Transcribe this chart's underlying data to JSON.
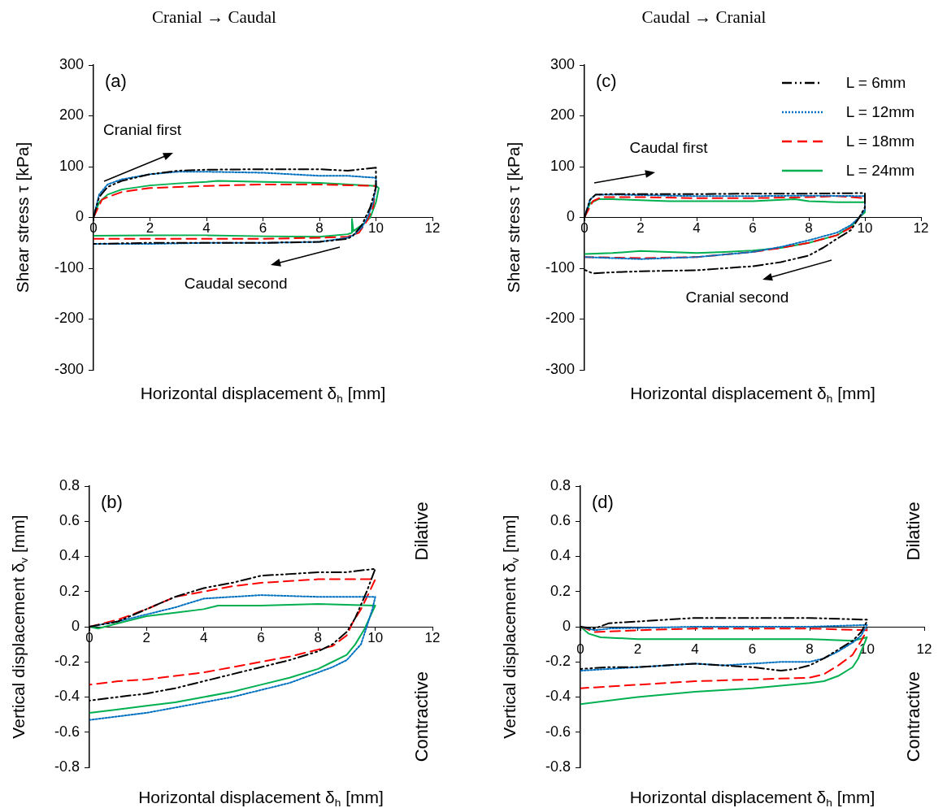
{
  "chart_data": [
    {
      "type": "line",
      "title": "Cranial → Caudal",
      "xlabel": "Horizontal displacement δ$_{h}$ [mm]",
      "ylabel": "Shear stress τ [kPa]",
      "xlim": [
        0,
        12
      ],
      "xticks": [
        0,
        2,
        4,
        6,
        8,
        10,
        12
      ],
      "ylim": [
        -300,
        300
      ],
      "yticks": [
        -300,
        -200,
        -100,
        0,
        100,
        200,
        300
      ],
      "grid": false,
      "legend": false,
      "annotations": [
        "(a)",
        "Cranial first",
        "Caudal second"
      ],
      "series": [
        {
          "color": "#000000",
          "line_style": "dashdot",
          "x": [
            0,
            0.2,
            0.5,
            1,
            2,
            3,
            4,
            6,
            8,
            9,
            10,
            10,
            9.8,
            9.5,
            9.2,
            9,
            8,
            6,
            4,
            2,
            0
          ],
          "values": [
            0,
            40,
            60,
            72,
            85,
            92,
            94,
            95,
            95,
            92,
            98,
            60,
            20,
            -15,
            -35,
            -42,
            -48,
            -50,
            -50,
            -50,
            -52
          ]
        },
        {
          "color": "#0070c0",
          "line_style": "dotted",
          "x": [
            0,
            0.2,
            0.5,
            1,
            2,
            3,
            4,
            6,
            8,
            9,
            10,
            10,
            9.9,
            9.7,
            9.5,
            9.2,
            9,
            8,
            6,
            4,
            2,
            0
          ],
          "values": [
            0,
            45,
            65,
            75,
            85,
            90,
            90,
            88,
            82,
            82,
            78,
            60,
            30,
            0,
            -20,
            -35,
            -40,
            -48,
            -50,
            -50,
            -52,
            -52
          ]
        },
        {
          "color": "#ff0000",
          "line_style": "dashed",
          "x": [
            0,
            0.3,
            0.5,
            1,
            2,
            3,
            4,
            6,
            8,
            10,
            9.9,
            9.7,
            9.4,
            9,
            8,
            6,
            4,
            2,
            0
          ],
          "values": [
            0,
            35,
            40,
            50,
            58,
            60,
            62,
            65,
            65,
            62,
            20,
            -5,
            -30,
            -38,
            -40,
            -42,
            -42,
            -42,
            -42
          ]
        },
        {
          "color": "#00b050",
          "line_style": "solid",
          "x": [
            0,
            0.2,
            0.5,
            1,
            2,
            3,
            4,
            4.4,
            6,
            8,
            10,
            10.1,
            10,
            9.8,
            9.5,
            9.2,
            9.15,
            9.15,
            9,
            8,
            6,
            4,
            2,
            0
          ],
          "values": [
            0,
            30,
            45,
            55,
            63,
            67,
            70,
            72,
            70,
            68,
            62,
            58,
            30,
            0,
            -15,
            -27,
            -3,
            -30,
            -33,
            -38,
            -37,
            -35,
            -35,
            -36
          ]
        }
      ]
    },
    {
      "type": "line",
      "title": "Caudal → Cranial",
      "xlabel": "Horizontal displacement δ$_{h}$ [mm]",
      "ylabel": "Shear stress τ [kPa]",
      "xlim": [
        0,
        12
      ],
      "xticks": [
        0,
        2,
        4,
        6,
        8,
        10,
        12
      ],
      "ylim": [
        -300,
        300
      ],
      "yticks": [
        -300,
        -200,
        -100,
        0,
        100,
        200,
        300
      ],
      "grid": false,
      "legend": "top right",
      "annotations": [
        "(c)",
        "Caudal first",
        "Cranial second"
      ],
      "series": [
        {
          "name": "L = 6mm",
          "color": "#000000",
          "line_style": "dashdot",
          "x": [
            0,
            0.2,
            0.4,
            1,
            4,
            6,
            8,
            10,
            10,
            9.8,
            9.5,
            9,
            8.5,
            8,
            7,
            6,
            5,
            4,
            3,
            2,
            1,
            0.3,
            0
          ],
          "values": [
            0,
            35,
            45,
            46,
            46,
            47,
            47,
            48,
            20,
            0,
            -25,
            -42,
            -60,
            -75,
            -88,
            -96,
            -100,
            -104,
            -105,
            -106,
            -108,
            -110,
            -103
          ]
        },
        {
          "name": "L = 12mm",
          "color": "#0070c0",
          "line_style": "dotted",
          "x": [
            0,
            0.2,
            0.4,
            1,
            4,
            6,
            8,
            10,
            10,
            9.8,
            9.5,
            9,
            8,
            7,
            6,
            4,
            2,
            1,
            0
          ],
          "values": [
            0,
            35,
            45,
            45,
            42,
            42,
            43,
            42,
            15,
            0,
            -15,
            -30,
            -45,
            -58,
            -68,
            -78,
            -82,
            -80,
            -78
          ]
        },
        {
          "name": "L = 18mm",
          "color": "#ff0000",
          "line_style": "dashed",
          "x": [
            0,
            0.3,
            0.6,
            2,
            4,
            6,
            8,
            9,
            10,
            10,
            9.8,
            9.5,
            9,
            8,
            7,
            6,
            4,
            2,
            0
          ],
          "values": [
            0,
            32,
            40,
            40,
            38,
            38,
            40,
            42,
            38,
            15,
            0,
            -20,
            -35,
            -50,
            -60,
            -68,
            -78,
            -80,
            -78
          ]
        },
        {
          "name": "L = 24mm",
          "color": "#00b050",
          "line_style": "solid",
          "x": [
            0,
            0.2,
            0.5,
            1,
            2,
            3,
            4,
            6,
            7.5,
            8,
            9,
            10,
            10,
            9.8,
            9.5,
            9,
            8,
            7,
            6,
            5,
            4,
            3,
            2,
            1,
            0
          ],
          "values": [
            0,
            28,
            36,
            36,
            34,
            32,
            32,
            32,
            36,
            32,
            30,
            30,
            10,
            0,
            -18,
            -35,
            -50,
            -60,
            -65,
            -68,
            -70,
            -68,
            -66,
            -70,
            -72
          ]
        }
      ]
    },
    {
      "type": "line",
      "xlabel": "Horizontal displacement δ$_{h}$ [mm]",
      "ylabel": "Vertical displacement δ$_{v}$ [mm]",
      "xlim": [
        0,
        12
      ],
      "xticks": [
        0,
        2,
        4,
        6,
        8,
        10,
        12
      ],
      "ylim": [
        -0.8,
        0.8
      ],
      "yticks": [
        -0.8,
        -0.6,
        -0.4,
        -0.2,
        0,
        0.2,
        0.4,
        0.6,
        0.8
      ],
      "grid": false,
      "legend": false,
      "annotations": [
        "(b)",
        "Dilative",
        "Contractive"
      ],
      "series": [
        {
          "color": "#000000",
          "line_style": "dashdot",
          "x": [
            0,
            1,
            2,
            3,
            4,
            5,
            6,
            7,
            8,
            9,
            10,
            9.7,
            9.3,
            9,
            8.5,
            8,
            7,
            6,
            5,
            4,
            3,
            2,
            1,
            0
          ],
          "values": [
            0,
            0.03,
            0.1,
            0.17,
            0.22,
            0.25,
            0.29,
            0.3,
            0.31,
            0.31,
            0.33,
            0.2,
            0.05,
            -0.03,
            -0.1,
            -0.14,
            -0.19,
            -0.23,
            -0.27,
            -0.31,
            -0.35,
            -0.38,
            -0.4,
            -0.42
          ]
        },
        {
          "color": "#0070c0",
          "line_style": "dotted",
          "x": [
            0,
            1,
            2,
            3,
            4,
            5,
            6,
            8,
            10,
            9.9,
            9.7,
            9.5,
            9,
            8.5,
            8,
            7,
            6,
            5,
            4,
            3,
            2,
            1,
            0
          ],
          "values": [
            0,
            0.03,
            0.07,
            0.11,
            0.16,
            0.17,
            0.18,
            0.17,
            0.17,
            0.1,
            0,
            -0.1,
            -0.19,
            -0.23,
            -0.26,
            -0.32,
            -0.36,
            -0.4,
            -0.43,
            -0.46,
            -0.49,
            -0.51,
            -0.53
          ]
        },
        {
          "color": "#ff0000",
          "line_style": "dashed",
          "x": [
            0,
            1,
            2,
            3,
            4,
            5,
            6,
            7,
            8,
            9,
            10,
            9.8,
            9.5,
            9.2,
            9,
            8.5,
            8,
            7,
            6,
            5,
            4,
            3,
            2,
            1,
            0
          ],
          "values": [
            0,
            0.04,
            0.1,
            0.17,
            0.2,
            0.23,
            0.25,
            0.26,
            0.27,
            0.27,
            0.27,
            0.2,
            0.1,
            0.02,
            -0.05,
            -0.11,
            -0.13,
            -0.17,
            -0.2,
            -0.23,
            -0.26,
            -0.28,
            -0.3,
            -0.31,
            -0.33
          ]
        },
        {
          "color": "#00b050",
          "line_style": "solid",
          "x": [
            0,
            0.3,
            1,
            2,
            3,
            4,
            4.5,
            6,
            8,
            10,
            9.8,
            9.6,
            9.3,
            9,
            8.5,
            8,
            7,
            6,
            5,
            4,
            3,
            2,
            1,
            0
          ],
          "values": [
            0,
            -0.01,
            0.02,
            0.06,
            0.08,
            0.1,
            0.12,
            0.12,
            0.13,
            0.12,
            0.05,
            -0.02,
            -0.1,
            -0.16,
            -0.2,
            -0.24,
            -0.29,
            -0.33,
            -0.37,
            -0.4,
            -0.43,
            -0.45,
            -0.47,
            -0.49
          ]
        }
      ]
    },
    {
      "type": "line",
      "xlabel": "Horizontal displacement δ$_{h}$ [mm]",
      "ylabel": "Vertical displacement δ$_{v}$ [mm]",
      "xlim": [
        0,
        12
      ],
      "xticks": [
        0,
        2,
        4,
        6,
        8,
        10,
        12
      ],
      "ylim": [
        -0.8,
        0.8
      ],
      "yticks": [
        -0.8,
        -0.6,
        -0.4,
        -0.2,
        0,
        0.2,
        0.4,
        0.6,
        0.8
      ],
      "grid": false,
      "legend": false,
      "annotations": [
        "(d)",
        "Dilative",
        "Contractive"
      ],
      "series": [
        {
          "color": "#000000",
          "line_style": "dashdot",
          "x": [
            0,
            0.5,
            1,
            2,
            3,
            4,
            6,
            8,
            10,
            10,
            9.8,
            9.5,
            9,
            8.5,
            8,
            7.5,
            7,
            6,
            5,
            4,
            3,
            2,
            1,
            0
          ],
          "values": [
            0,
            -0.01,
            0.02,
            0.03,
            0.04,
            0.05,
            0.05,
            0.05,
            0.04,
            0.03,
            -0.03,
            -0.08,
            -0.13,
            -0.18,
            -0.22,
            -0.24,
            -0.25,
            -0.23,
            -0.22,
            -0.21,
            -0.22,
            -0.23,
            -0.23,
            -0.24
          ]
        },
        {
          "color": "#0070c0",
          "line_style": "dotted",
          "x": [
            0,
            0.5,
            1,
            4,
            6,
            8,
            10,
            9.8,
            9.5,
            9,
            8.5,
            8,
            7,
            6,
            5,
            4,
            3,
            2,
            1,
            0
          ],
          "values": [
            0,
            -0.02,
            -0.01,
            0,
            0,
            0,
            0.01,
            -0.05,
            -0.09,
            -0.14,
            -0.18,
            -0.2,
            -0.2,
            -0.21,
            -0.22,
            -0.21,
            -0.22,
            -0.23,
            -0.24,
            -0.25
          ]
        },
        {
          "color": "#ff0000",
          "line_style": "dashed",
          "x": [
            0,
            0.5,
            2,
            4,
            6,
            8,
            10,
            9.8,
            9.5,
            9,
            8.5,
            8,
            6,
            4,
            2,
            1,
            0
          ],
          "values": [
            0,
            -0.03,
            -0.02,
            -0.01,
            -0.01,
            -0.01,
            -0.02,
            -0.08,
            -0.16,
            -0.22,
            -0.27,
            -0.29,
            -0.3,
            -0.31,
            -0.33,
            -0.34,
            -0.35
          ]
        },
        {
          "color": "#00b050",
          "line_style": "solid",
          "x": [
            0,
            0.3,
            0.7,
            2,
            4,
            6,
            8,
            9.5,
            10,
            9.9,
            9.7,
            9.5,
            9,
            8.5,
            8,
            6,
            4,
            2,
            0
          ],
          "values": [
            0,
            -0.04,
            -0.06,
            -0.07,
            -0.07,
            -0.07,
            -0.07,
            -0.08,
            -0.06,
            -0.1,
            -0.18,
            -0.23,
            -0.28,
            -0.31,
            -0.32,
            -0.35,
            -0.37,
            -0.4,
            -0.44
          ]
        }
      ]
    }
  ]
}
